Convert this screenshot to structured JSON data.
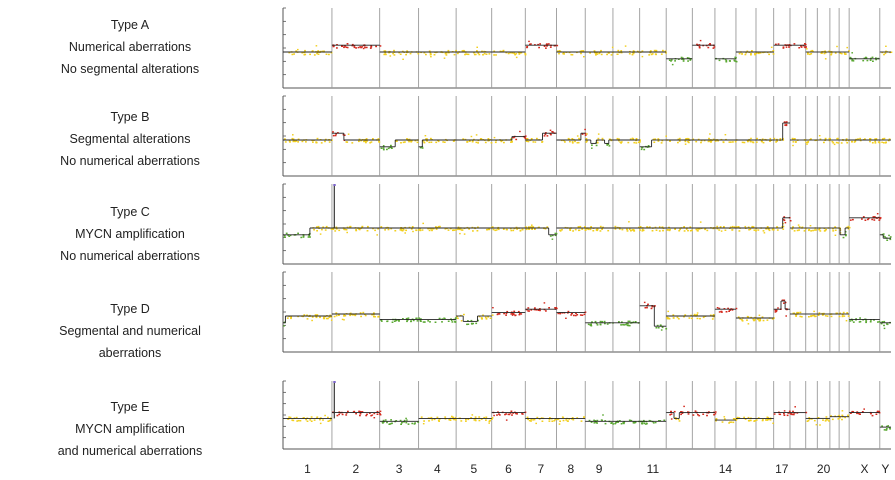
{
  "chart_data": {
    "type": "scatter",
    "title": "",
    "xlabel": "",
    "ylabel": "",
    "chromosomes": [
      "1",
      "2",
      "3",
      "4",
      "5",
      "6",
      "7",
      "8",
      "9",
      "10",
      "11",
      "12",
      "13",
      "14",
      "15",
      "16",
      "17",
      "18",
      "19",
      "20",
      "21",
      "22",
      "X",
      "Y"
    ],
    "chromosome_sizes_mb": [
      249,
      243,
      198,
      191,
      181,
      171,
      159,
      146,
      141,
      136,
      135,
      133,
      115,
      107,
      102,
      90,
      83,
      80,
      59,
      64,
      47,
      51,
      156,
      57
    ],
    "x_tick_labels": [
      "1",
      "2",
      "3",
      "4",
      "5",
      "6",
      "7",
      "8",
      "9",
      "11",
      "14",
      "17",
      "20",
      "X",
      "Y"
    ],
    "x_tick_chromosomes": [
      "1",
      "2",
      "3",
      "4",
      "5",
      "6",
      "7",
      "8",
      "9",
      "11",
      "14",
      "17",
      "20",
      "X",
      "Y"
    ],
    "y_scale": "log2 ratio, relative",
    "color_gain": "#d42a1e",
    "color_normal": "#f2cf1d",
    "color_loss": "#5aa832",
    "color_segment": "#222222",
    "panels": [
      {
        "lines": [
          "Type A",
          "Numerical aberrations",
          "No segmental alterations"
        ],
        "levels": [
          0,
          1,
          0,
          0,
          0,
          0,
          1,
          0,
          0,
          0,
          0,
          -1,
          1,
          -1,
          0,
          0,
          1,
          1,
          0,
          0,
          0,
          0,
          -1,
          0
        ],
        "segments": [],
        "spikes": []
      },
      {
        "lines": [
          "Type B",
          "Segmental alterations",
          "No numerical aberrations"
        ],
        "levels": [
          0,
          0,
          0,
          0,
          0,
          0,
          0,
          0,
          0,
          0,
          0,
          0,
          0,
          0,
          0,
          0,
          0,
          0,
          0,
          0,
          0,
          0,
          0,
          0
        ],
        "segments": [
          {
            "chr": "1",
            "from": 0,
            "to": 1,
            "level": 0
          },
          {
            "chr": "2",
            "from": 0,
            "to": 0.25,
            "level": 1
          },
          {
            "chr": "3",
            "from": 0,
            "to": 0.4,
            "level": -1
          },
          {
            "chr": "4",
            "from": 0,
            "to": 0.1,
            "level": -1
          },
          {
            "chr": "6",
            "from": 0.6,
            "to": 1,
            "level": 0.5
          },
          {
            "chr": "7",
            "from": 0.55,
            "to": 1,
            "level": 1
          },
          {
            "chr": "8",
            "from": 0.85,
            "to": 1,
            "level": 1
          },
          {
            "chr": "9",
            "from": 0.2,
            "to": 0.4,
            "level": -0.5
          },
          {
            "chr": "9",
            "from": 0.7,
            "to": 0.85,
            "level": -0.5
          },
          {
            "chr": "11",
            "from": 0.0,
            "to": 0.45,
            "level": -1
          },
          {
            "chr": "17",
            "from": 0.55,
            "to": 1,
            "level": 2.5
          }
        ],
        "spikes": []
      },
      {
        "lines": [
          "Type C",
          "MYCN amplification",
          "No numerical aberrations"
        ],
        "levels": [
          0,
          0,
          0,
          0,
          0,
          0,
          0,
          0,
          0,
          0,
          0,
          0,
          0,
          0,
          0,
          0,
          0,
          0,
          0,
          0,
          0,
          0,
          1.5,
          -1
        ],
        "segments": [
          {
            "chr": "1",
            "from": 0,
            "to": 0.55,
            "level": -1
          },
          {
            "chr": "7",
            "from": 0.75,
            "to": 1,
            "level": -1
          },
          {
            "chr": "17",
            "from": 0.55,
            "to": 1,
            "level": 1.5
          },
          {
            "chr": "22",
            "from": 0.1,
            "to": 0.6,
            "level": -1
          },
          {
            "chr": "Y",
            "from": 0.3,
            "to": 1,
            "level": -1.5
          }
        ],
        "spikes": [
          {
            "chr": "2",
            "at": 0.05,
            "height": 7
          }
        ]
      },
      {
        "lines": [
          "Type D",
          "Segmental and numerical",
          "aberrations"
        ],
        "levels": [
          0,
          0.3,
          -0.5,
          -0.5,
          0,
          0.5,
          1,
          0.5,
          -1,
          -1,
          1.5,
          0,
          0,
          1,
          -0.3,
          -0.3,
          1,
          0.3,
          0.3,
          0.3,
          0.3,
          0.3,
          -0.5,
          -1
        ],
        "segments": [
          {
            "chr": "1",
            "from": 0,
            "to": 0.05,
            "level": -1
          },
          {
            "chr": "5",
            "from": 0.2,
            "to": 0.6,
            "level": -0.8
          },
          {
            "chr": "11",
            "from": 0.55,
            "to": 1,
            "level": -1.5
          },
          {
            "chr": "17",
            "from": 0.45,
            "to": 0.7,
            "level": 2.2
          }
        ],
        "spikes": []
      },
      {
        "lines": [
          "Type E",
          "MYCN amplification",
          "and numerical aberrations"
        ],
        "levels": [
          0,
          1,
          -0.5,
          0,
          0,
          1,
          0,
          0,
          -0.5,
          -0.5,
          -0.5,
          1,
          1,
          -0.3,
          0,
          0,
          1,
          1,
          0,
          0,
          0.3,
          0.3,
          1,
          -1.5
        ],
        "segments": [
          {
            "chr": "12",
            "from": 0.3,
            "to": 0.5,
            "level": 0
          }
        ],
        "spikes": [
          {
            "chr": "2",
            "at": 0.05,
            "height": 7
          }
        ]
      }
    ]
  }
}
